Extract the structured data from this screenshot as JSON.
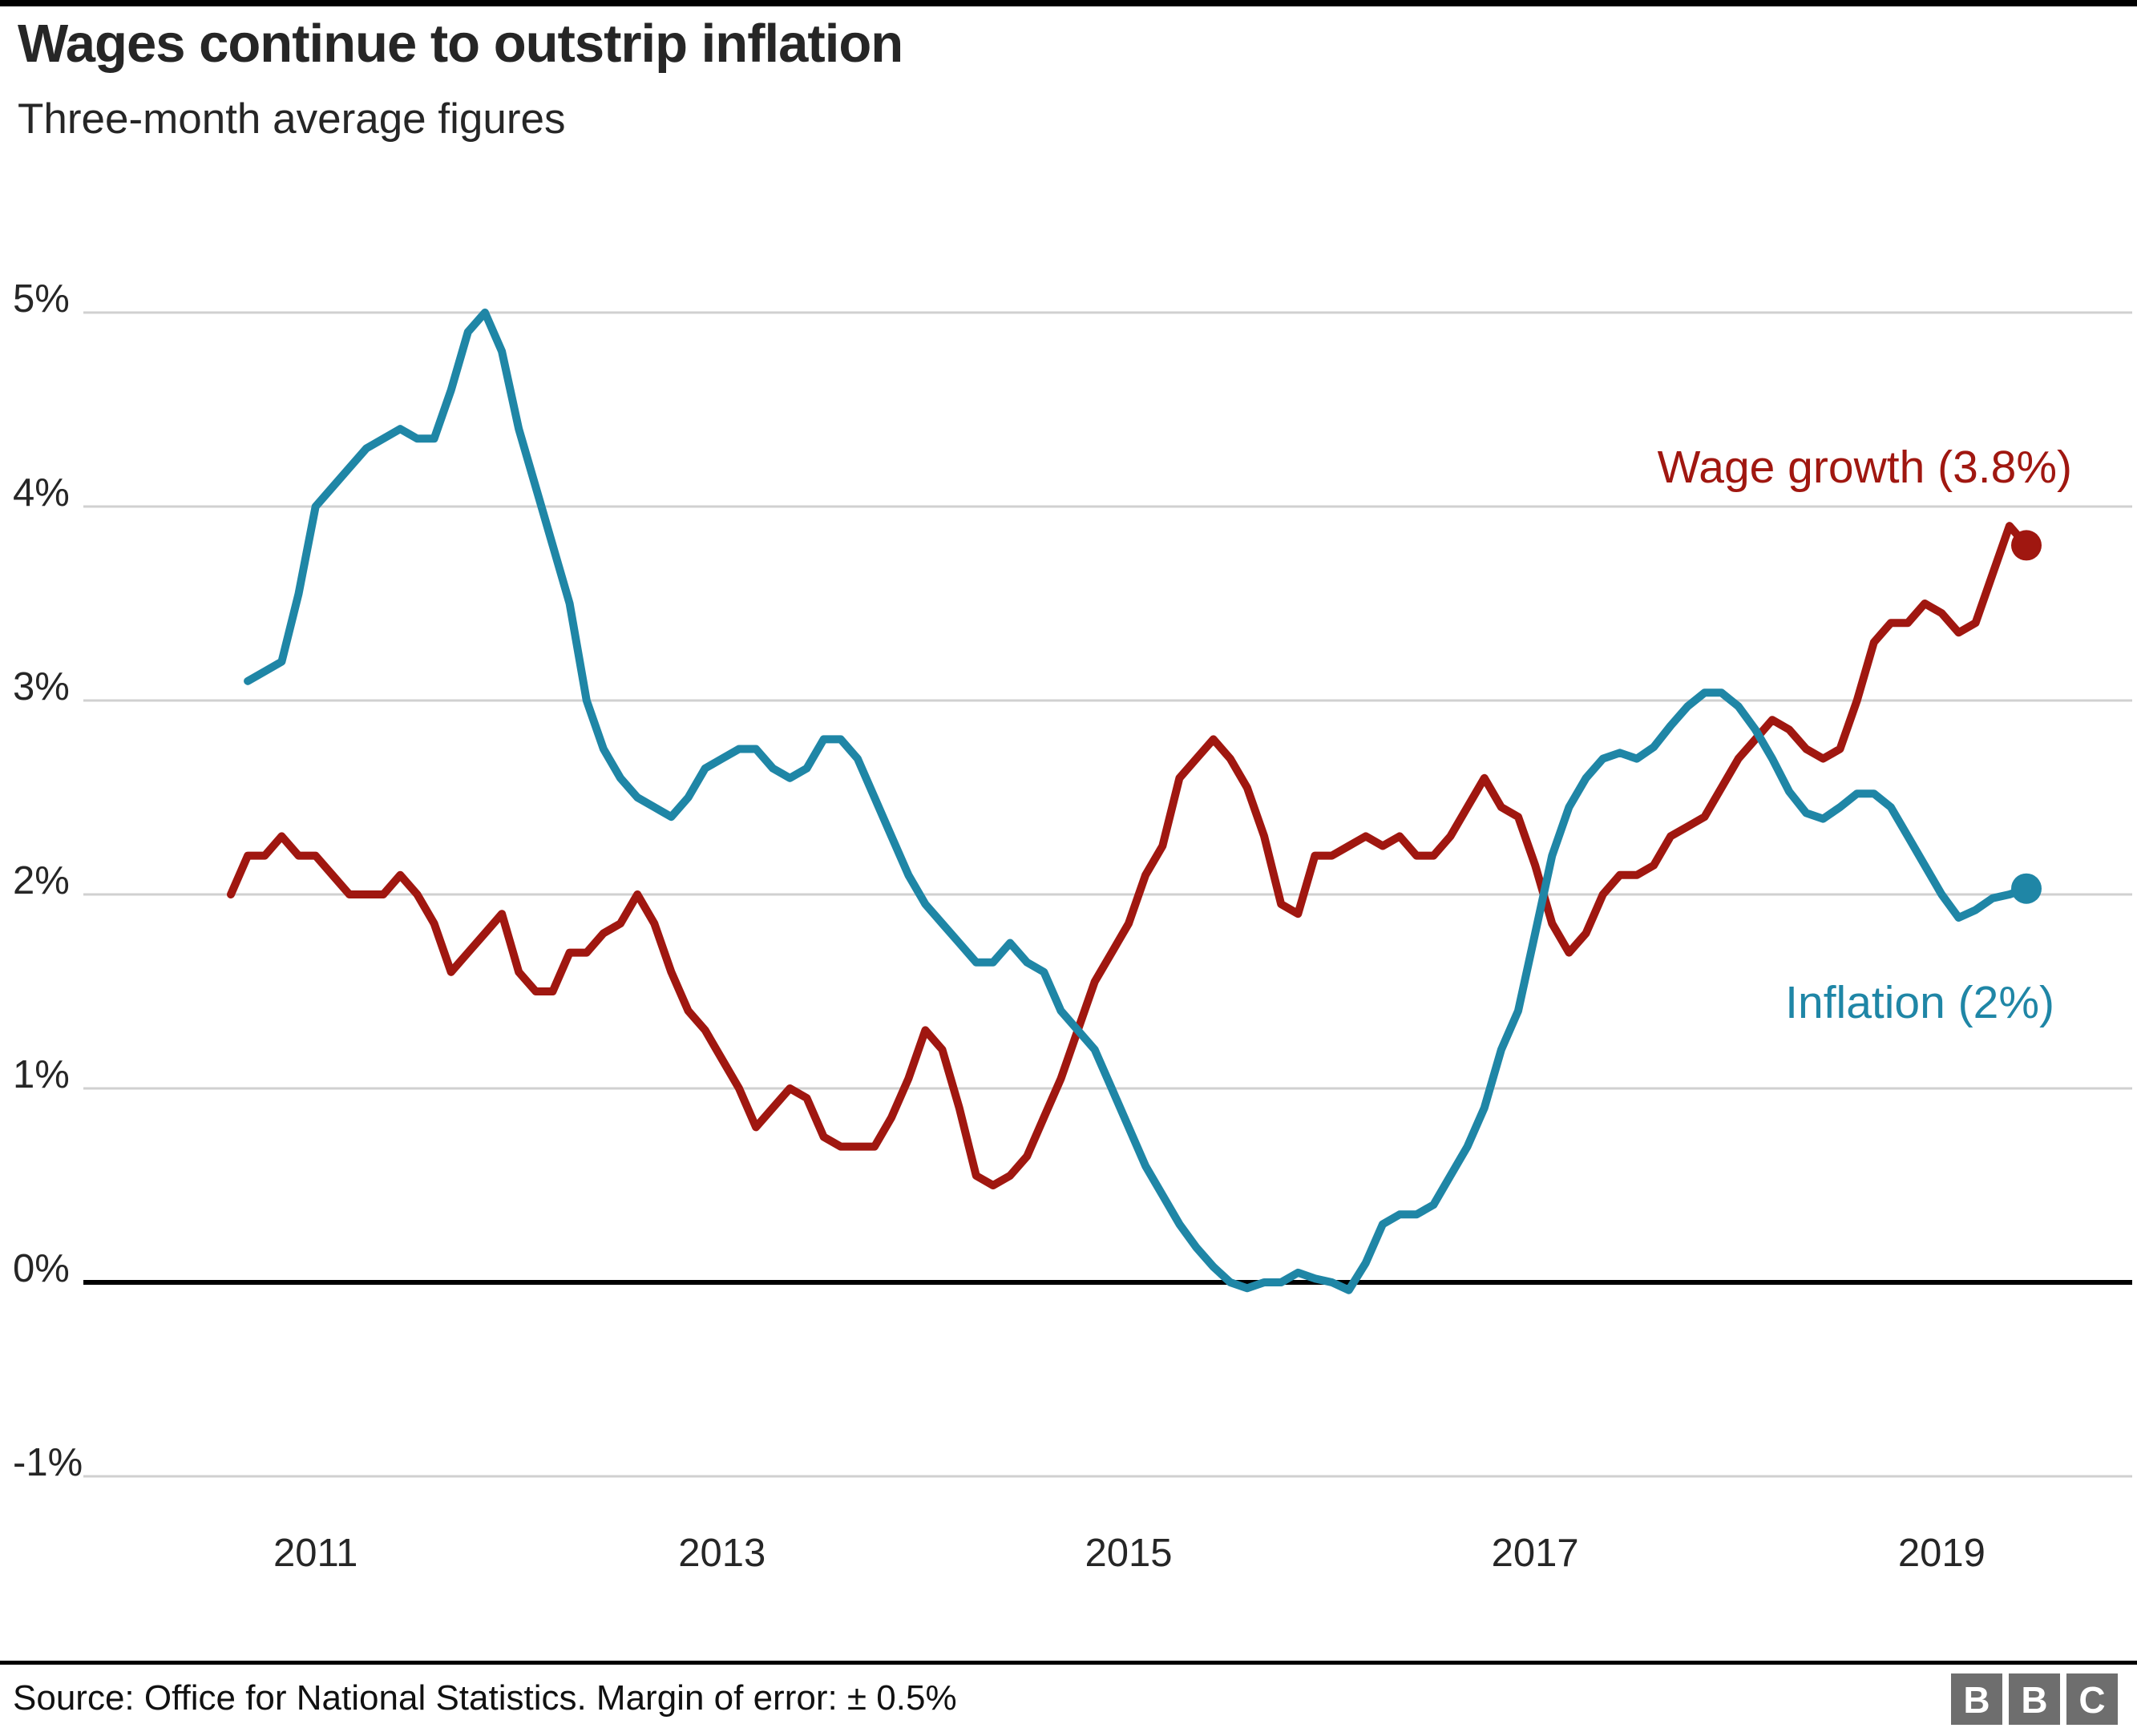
{
  "header": {
    "title": "Wages continue to outstrip inflation",
    "subtitle": "Three-month average figures"
  },
  "footer": {
    "source_text": "Source: Office for National Statistics. Margin of error: ± 0.5%"
  },
  "logo": {
    "letters": [
      "B",
      "B",
      "C"
    ]
  },
  "colors": {
    "wage_growth": "#a01710",
    "inflation": "#1f86a6",
    "gridline": "#d0d0d0",
    "zero_line": "#000000",
    "text": "#262626",
    "logo_gray": "#6e6e6e",
    "background": "#ffffff"
  },
  "chart_data": {
    "type": "line",
    "title": "Wages continue to outstrip inflation",
    "subtitle": "Three-month average figures",
    "xlabel": "",
    "ylabel": "",
    "grid": "horizontal",
    "legend_position": "inline-end-labels",
    "x_start_month": "2010-08",
    "x_end_month": "2019-06",
    "x_axis": {
      "ticks": [
        {
          "label": "2011",
          "month_index": 5
        },
        {
          "label": "2013",
          "month_index": 29
        },
        {
          "label": "2015",
          "month_index": 53
        },
        {
          "label": "2017",
          "month_index": 77
        },
        {
          "label": "2019",
          "month_index": 101
        }
      ]
    },
    "y_axis": {
      "unit": "%",
      "range": [
        -1,
        5
      ],
      "ticks": [
        {
          "label": "5%",
          "value": 5
        },
        {
          "label": "4%",
          "value": 4
        },
        {
          "label": "3%",
          "value": 3
        },
        {
          "label": "2%",
          "value": 2
        },
        {
          "label": "1%",
          "value": 1
        },
        {
          "label": "0%",
          "value": 0
        },
        {
          "label": "-1%",
          "value": -1
        }
      ]
    },
    "series": [
      {
        "name": "Wage growth",
        "label": "Wage growth (3.8%)",
        "latest_value": 3.8,
        "color": "#a01710",
        "month_offset": 0,
        "end_dot": true,
        "values": [
          2.0,
          2.2,
          2.2,
          2.3,
          2.2,
          2.2,
          2.1,
          2.0,
          2.0,
          2.0,
          2.1,
          2.0,
          1.85,
          1.6,
          1.7,
          1.8,
          1.9,
          1.6,
          1.5,
          1.5,
          1.7,
          1.7,
          1.8,
          1.85,
          2.0,
          1.85,
          1.6,
          1.4,
          1.3,
          1.15,
          1.0,
          0.8,
          0.9,
          1.0,
          0.95,
          0.75,
          0.7,
          0.7,
          0.7,
          0.85,
          1.05,
          1.3,
          1.2,
          0.9,
          0.55,
          0.5,
          0.55,
          0.65,
          0.85,
          1.05,
          1.3,
          1.55,
          1.7,
          1.85,
          2.1,
          2.25,
          2.6,
          2.7,
          2.8,
          2.7,
          2.55,
          2.3,
          1.95,
          1.9,
          2.2,
          2.2,
          2.25,
          2.3,
          2.25,
          2.3,
          2.2,
          2.2,
          2.3,
          2.45,
          2.6,
          2.45,
          2.4,
          2.15,
          1.85,
          1.7,
          1.8,
          2.0,
          2.1,
          2.1,
          2.15,
          2.3,
          2.35,
          2.4,
          2.55,
          2.7,
          2.8,
          2.9,
          2.85,
          2.75,
          2.7,
          2.75,
          3.0,
          3.3,
          3.4,
          3.4,
          3.5,
          3.45,
          3.35,
          3.4,
          3.65,
          3.9,
          3.8
        ]
      },
      {
        "name": "Inflation",
        "label": "Inflation (2%)",
        "latest_value": 2.0,
        "color": "#1f86a6",
        "month_offset": 1,
        "end_dot": true,
        "values": [
          3.1,
          3.15,
          3.2,
          3.55,
          4.0,
          4.1,
          4.2,
          4.3,
          4.35,
          4.4,
          4.35,
          4.35,
          4.6,
          4.9,
          5.0,
          4.8,
          4.4,
          4.1,
          3.8,
          3.5,
          3.0,
          2.75,
          2.6,
          2.5,
          2.45,
          2.4,
          2.5,
          2.65,
          2.7,
          2.75,
          2.75,
          2.65,
          2.6,
          2.65,
          2.8,
          2.8,
          2.7,
          2.5,
          2.3,
          2.1,
          1.95,
          1.85,
          1.75,
          1.65,
          1.65,
          1.75,
          1.65,
          1.6,
          1.4,
          1.3,
          1.2,
          1.0,
          0.8,
          0.6,
          0.45,
          0.3,
          0.18,
          0.08,
          0.0,
          -0.03,
          0.0,
          0.0,
          0.05,
          0.02,
          0.0,
          -0.04,
          0.1,
          0.3,
          0.35,
          0.35,
          0.4,
          0.55,
          0.7,
          0.9,
          1.2,
          1.4,
          1.8,
          2.2,
          2.45,
          2.6,
          2.7,
          2.73,
          2.7,
          2.76,
          2.87,
          2.97,
          3.04,
          3.04,
          2.97,
          2.85,
          2.7,
          2.53,
          2.42,
          2.39,
          2.45,
          2.52,
          2.52,
          2.45,
          2.3,
          2.15,
          2.0,
          1.88,
          1.92,
          1.98,
          2.0,
          2.03
        ]
      }
    ]
  }
}
